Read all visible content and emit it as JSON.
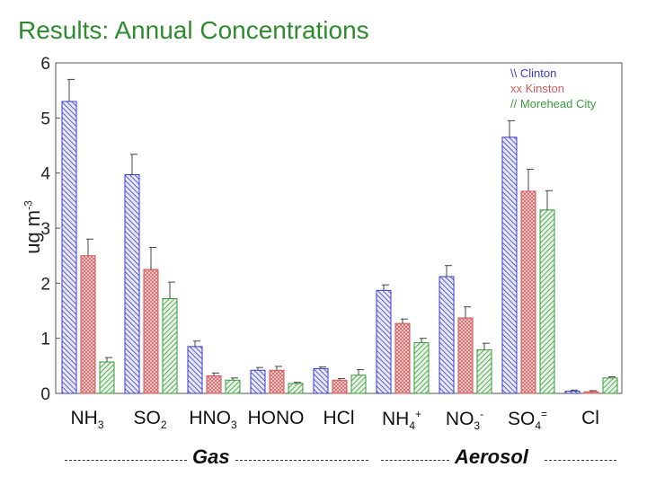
{
  "slide": {
    "title": "Results: Annual Concentrations",
    "y_unit": "ug m",
    "y_unit_sup": "-3",
    "gas_label": "Gas",
    "aerosol_label": "Aerosol"
  },
  "colors": {
    "Clinton": "#3b3bc8",
    "Kinston": "#d45a5a",
    "Morehead City": "#3c9a3c"
  },
  "chart_data": {
    "type": "bar",
    "categories": [
      "NH3",
      "SO2",
      "HNO3",
      "HONO",
      "HCl",
      "NH4+",
      "NO3-",
      "SO4=",
      "Cl"
    ],
    "category_labels": [
      {
        "base": "NH",
        "sub": "3",
        "sup": ""
      },
      {
        "base": "SO",
        "sub": "2",
        "sup": ""
      },
      {
        "base": "HNO",
        "sub": "3",
        "sup": ""
      },
      {
        "base": "HONO",
        "sub": "",
        "sup": ""
      },
      {
        "base": "HCl",
        "sub": "",
        "sup": ""
      },
      {
        "base": "NH",
        "sub": "4",
        "sup": "+"
      },
      {
        "base": "NO",
        "sub": "3",
        "sup": "-"
      },
      {
        "base": "SO",
        "sub": "4",
        "sup": "="
      },
      {
        "base": "Cl",
        "sub": "",
        "sup": ""
      }
    ],
    "series": [
      {
        "name": "\\\\ Clinton",
        "values": [
          5.3,
          3.97,
          0.85,
          0.42,
          0.45,
          1.87,
          2.12,
          4.65,
          0.04
        ],
        "errors": [
          0.4,
          0.37,
          0.1,
          0.05,
          0.03,
          0.1,
          0.2,
          0.3,
          0.02
        ]
      },
      {
        "name": "xx Kinston",
        "values": [
          2.5,
          2.25,
          0.32,
          0.42,
          0.24,
          1.27,
          1.37,
          3.67,
          0.03
        ],
        "errors": [
          0.3,
          0.4,
          0.05,
          0.07,
          0.03,
          0.08,
          0.2,
          0.4,
          0.02
        ]
      },
      {
        "name": "// Morehead City",
        "values": [
          0.57,
          1.72,
          0.24,
          0.18,
          0.33,
          0.92,
          0.79,
          3.33,
          0.28
        ],
        "errors": [
          0.08,
          0.3,
          0.04,
          0.02,
          0.1,
          0.08,
          0.12,
          0.35,
          0.02
        ]
      }
    ],
    "ylim": [
      0,
      6
    ],
    "yticks": [
      0,
      1,
      2,
      3,
      4,
      5,
      6
    ],
    "legend_position": "top-right",
    "grid": false
  }
}
